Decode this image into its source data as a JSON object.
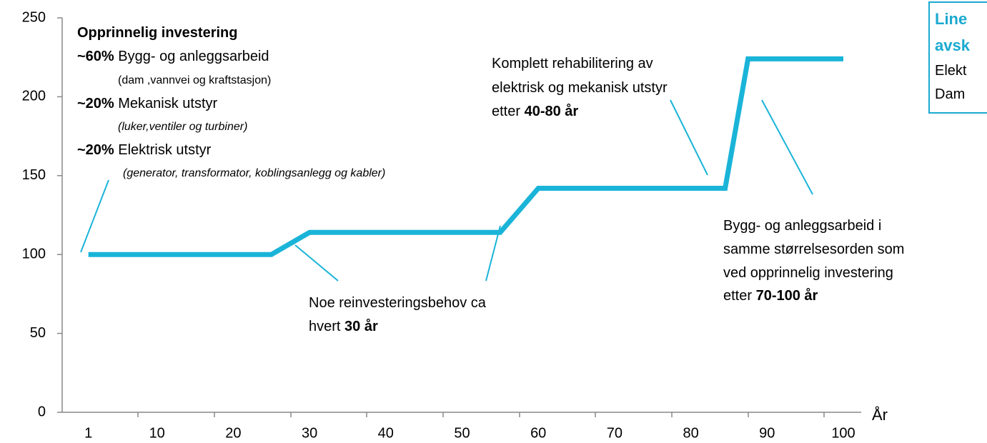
{
  "chart_data": {
    "type": "line",
    "x_label": "År",
    "xlim": [
      0,
      100
    ],
    "xticks": [
      1,
      10,
      20,
      30,
      40,
      50,
      60,
      70,
      80,
      90,
      100
    ],
    "ylim": [
      0,
      250
    ],
    "yticks": [
      0,
      50,
      100,
      150,
      200,
      250
    ],
    "series": [
      {
        "color": "#1ab4d8",
        "x": [
          1,
          25,
          30,
          55,
          60,
          84.5,
          87.5,
          100
        ],
        "values": [
          100,
          100,
          114,
          114,
          142,
          142,
          224,
          224
        ]
      }
    ],
    "annotations": [
      {
        "lines": [
          {
            "parts": [
              {
                "text": "Opprinnelig investering",
                "bold": true
              }
            ]
          },
          {
            "parts": [
              {
                "text": "~60%",
                "bold": true
              },
              {
                "text": " Bygg- og anleggsarbeid"
              }
            ]
          },
          {
            "parts": [
              {
                "text": "(dam ,vannvei og kraftstasjon)"
              }
            ]
          },
          {
            "parts": [
              {
                "text": "~20%",
                "bold": true
              },
              {
                "text": " Mekanisk utstyr"
              }
            ]
          },
          {
            "parts": [
              {
                "text": "(luker,ventiler og turbiner)",
                "italic": true
              }
            ]
          },
          {
            "parts": [
              {
                "text": "~20%",
                "bold": true
              },
              {
                "text": " Elektrisk utstyr"
              }
            ]
          },
          {
            "parts": [
              {
                "text": "(generator, transformator, koblingsanlegg og kabler)",
                "italic": true
              }
            ]
          }
        ]
      },
      {
        "lines": [
          {
            "parts": [
              {
                "text": "Komplett rehabilitering av"
              }
            ]
          },
          {
            "parts": [
              {
                "text": "elektrisk og mekanisk utstyr"
              }
            ]
          },
          {
            "parts": [
              {
                "text": "etter "
              },
              {
                "text": "40-80 år",
                "bold": true
              }
            ]
          }
        ]
      },
      {
        "lines": [
          {
            "parts": [
              {
                "text": "Noe reinvesteringsbehov ca"
              }
            ]
          },
          {
            "parts": [
              {
                "text": "hvert "
              },
              {
                "text": "30 år",
                "bold": true
              }
            ]
          }
        ]
      },
      {
        "lines": [
          {
            "parts": [
              {
                "text": "Bygg- og anleggsarbeid i"
              }
            ]
          },
          {
            "parts": [
              {
                "text": "samme størrelsesorden som"
              }
            ]
          },
          {
            "parts": [
              {
                "text": "ved opprinnelig investering"
              }
            ]
          },
          {
            "parts": [
              {
                "text": "etter "
              },
              {
                "text": "70-100 år",
                "bold": true
              }
            ]
          }
        ]
      },
      {
        "lines": [
          {
            "parts": [
              {
                "text": "Line",
                "bold": true,
                "color": "#1ba9d0"
              }
            ]
          },
          {
            "parts": [
              {
                "text": "avsk",
                "bold": true,
                "color": "#1ba9d0"
              }
            ]
          },
          {
            "parts": [
              {
                "text": "Elekt"
              }
            ]
          },
          {
            "parts": [
              {
                "text": "Dam"
              }
            ]
          }
        ]
      }
    ]
  }
}
